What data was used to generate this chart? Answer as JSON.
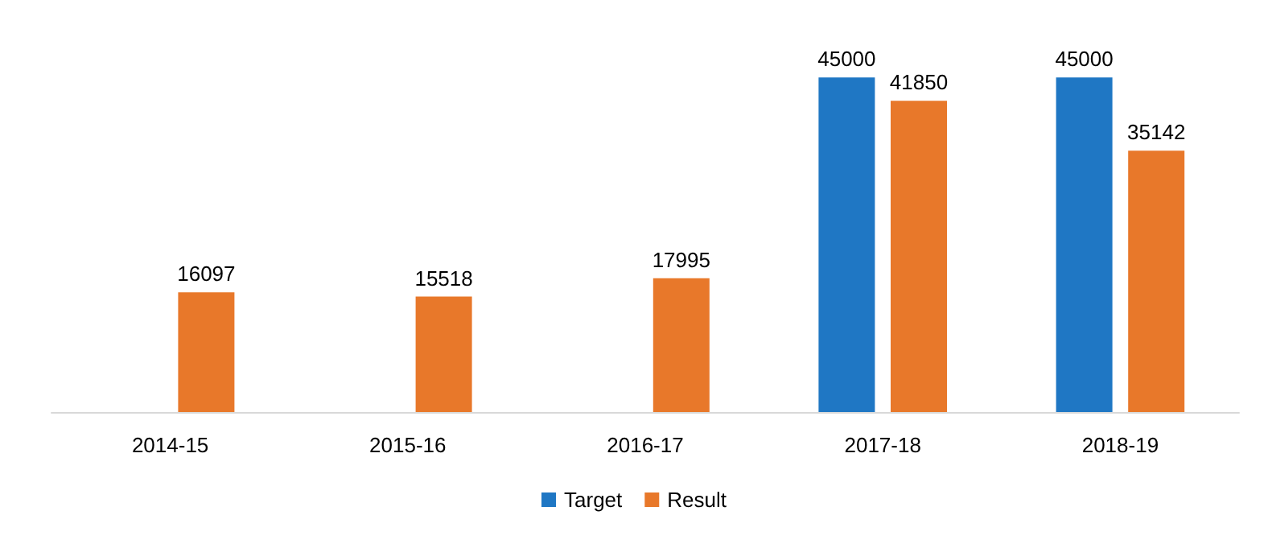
{
  "chart_data": {
    "type": "bar",
    "categories": [
      "2014-15",
      "2015-16",
      "2016-17",
      "2017-18",
      "2018-19"
    ],
    "series": [
      {
        "name": "Target",
        "color": "#1f77c4",
        "values": [
          null,
          null,
          null,
          45000,
          45000
        ]
      },
      {
        "name": "Result",
        "color": "#e8782a",
        "values": [
          16097,
          15518,
          17995,
          41850,
          35142
        ]
      }
    ],
    "data_labels": true,
    "legend": "bottom"
  }
}
